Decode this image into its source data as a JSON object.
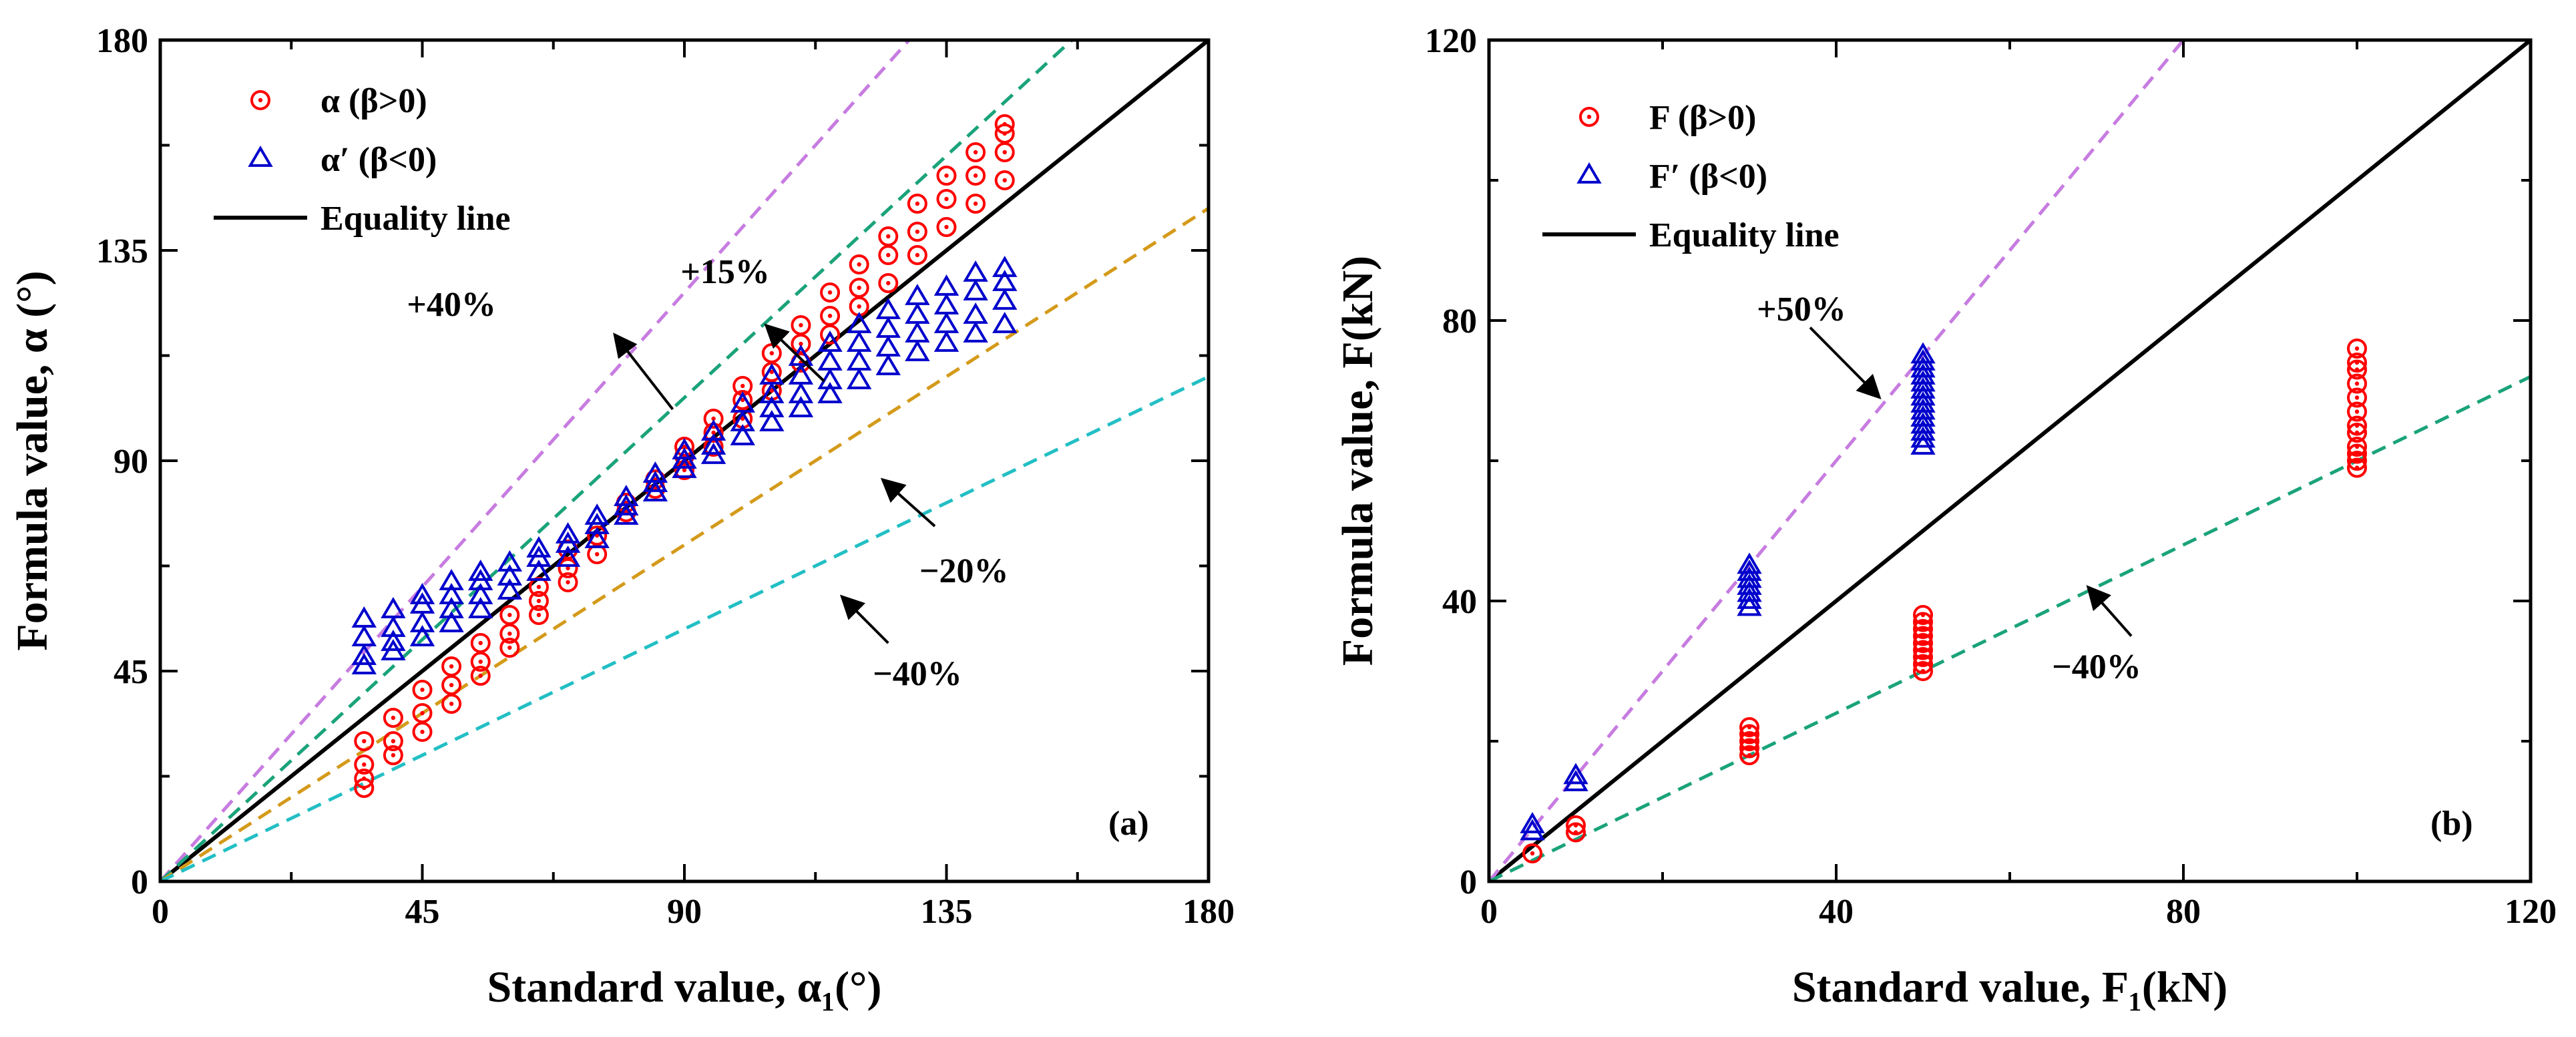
{
  "chart_data": [
    {
      "type": "scatter",
      "panel_label": "(a)",
      "xlabel": "Standard value, α₁(°)",
      "ylabel": "Formula value, α (°)",
      "xlim": [
        0,
        180
      ],
      "ylim": [
        0,
        180
      ],
      "xticks": [
        0,
        45,
        90,
        135,
        180
      ],
      "yticks": [
        0,
        45,
        90,
        135,
        180
      ],
      "legend_position": "top-left",
      "legend": [
        "α  (β>0)",
        "α′ (β<0)",
        "Equality line"
      ],
      "reference_lines": [
        {
          "slope": 1.0,
          "style": "solid",
          "color": "#000000",
          "label": "Equality line"
        },
        {
          "slope": 1.4,
          "style": "dashed",
          "color": "#c77ce0",
          "label": "+40%"
        },
        {
          "slope": 1.15,
          "style": "dashed",
          "color": "#1aa37a",
          "label": "+15%"
        },
        {
          "slope": 0.8,
          "style": "dashed",
          "color": "#d49a1a",
          "label": "−20%"
        },
        {
          "slope": 0.6,
          "style": "dashed",
          "color": "#22bfc4",
          "label": "−40%"
        }
      ],
      "annotations": [
        {
          "text": "+40%",
          "text_at": [
            50,
            121
          ],
          "arrow_from": [
            88,
            101
          ],
          "arrow_to": [
            78,
            117
          ]
        },
        {
          "text": "+15%",
          "text_at": [
            97,
            128
          ],
          "arrow_from": [
            114,
            107
          ],
          "arrow_to": [
            104,
            119
          ]
        },
        {
          "text": "−20%",
          "text_at": [
            138,
            64
          ],
          "arrow_from": [
            133,
            76
          ],
          "arrow_to": [
            124,
            86
          ]
        },
        {
          "text": "−40%",
          "text_at": [
            130,
            42
          ],
          "arrow_from": [
            125,
            51
          ],
          "arrow_to": [
            117,
            61
          ]
        }
      ],
      "series": [
        {
          "name": "α  (β>0)",
          "marker": "circle-dot",
          "color": "#ff0000",
          "points": [
            [
              35,
              20
            ],
            [
              35,
              22
            ],
            [
              35,
              25
            ],
            [
              35,
              30
            ],
            [
              40,
              27
            ],
            [
              40,
              30
            ],
            [
              40,
              35
            ],
            [
              45,
              32
            ],
            [
              45,
              36
            ],
            [
              45,
              41
            ],
            [
              50,
              38
            ],
            [
              50,
              42
            ],
            [
              50,
              46
            ],
            [
              55,
              44
            ],
            [
              55,
              47
            ],
            [
              55,
              51
            ],
            [
              60,
              50
            ],
            [
              60,
              53
            ],
            [
              60,
              57
            ],
            [
              65,
              57
            ],
            [
              65,
              60
            ],
            [
              65,
              63
            ],
            [
              70,
              64
            ],
            [
              70,
              67
            ],
            [
              70,
              71
            ],
            [
              75,
              70
            ],
            [
              75,
              74
            ],
            [
              80,
              79
            ],
            [
              80,
              81
            ],
            [
              85,
              84
            ],
            [
              85,
              86
            ],
            [
              90,
              88
            ],
            [
              90,
              91
            ],
            [
              90,
              93
            ],
            [
              95,
              93
            ],
            [
              95,
              96
            ],
            [
              95,
              99
            ],
            [
              100,
              99
            ],
            [
              100,
              103
            ],
            [
              100,
              106
            ],
            [
              105,
              105
            ],
            [
              105,
              109
            ],
            [
              105,
              113
            ],
            [
              110,
              111
            ],
            [
              110,
              115
            ],
            [
              110,
              119
            ],
            [
              115,
              117
            ],
            [
              115,
              121
            ],
            [
              115,
              126
            ],
            [
              120,
              123
            ],
            [
              120,
              127
            ],
            [
              120,
              132
            ],
            [
              125,
              128
            ],
            [
              125,
              134
            ],
            [
              125,
              138
            ],
            [
              130,
              134
            ],
            [
              130,
              139
            ],
            [
              130,
              145
            ],
            [
              135,
              140
            ],
            [
              135,
              146
            ],
            [
              135,
              151
            ],
            [
              140,
              145
            ],
            [
              140,
              151
            ],
            [
              140,
              156
            ],
            [
              145,
              150
            ],
            [
              145,
              156
            ],
            [
              145,
              160
            ],
            [
              145,
              162
            ]
          ]
        },
        {
          "name": "α′ (β<0)",
          "marker": "triangle",
          "color": "#0000cc",
          "points": [
            [
              35,
              46
            ],
            [
              35,
              48
            ],
            [
              35,
              52
            ],
            [
              35,
              56
            ],
            [
              40,
              49
            ],
            [
              40,
              51
            ],
            [
              40,
              54
            ],
            [
              40,
              58
            ],
            [
              45,
              52
            ],
            [
              45,
              55
            ],
            [
              45,
              59
            ],
            [
              45,
              61
            ],
            [
              50,
              55
            ],
            [
              50,
              58
            ],
            [
              50,
              61
            ],
            [
              50,
              64
            ],
            [
              55,
              58
            ],
            [
              55,
              61
            ],
            [
              55,
              64
            ],
            [
              55,
              66
            ],
            [
              60,
              62
            ],
            [
              60,
              65
            ],
            [
              60,
              68
            ],
            [
              65,
              66
            ],
            [
              65,
              69
            ],
            [
              65,
              71
            ],
            [
              70,
              69
            ],
            [
              70,
              72
            ],
            [
              70,
              74
            ],
            [
              75,
              73
            ],
            [
              75,
              76
            ],
            [
              75,
              78
            ],
            [
              80,
              78
            ],
            [
              80,
              80
            ],
            [
              80,
              82
            ],
            [
              85,
              83
            ],
            [
              85,
              85
            ],
            [
              85,
              87
            ],
            [
              90,
              88
            ],
            [
              90,
              90
            ],
            [
              90,
              92
            ],
            [
              95,
              91
            ],
            [
              95,
              93
            ],
            [
              95,
              96
            ],
            [
              100,
              95
            ],
            [
              100,
              98
            ],
            [
              100,
              102
            ],
            [
              105,
              98
            ],
            [
              105,
              101
            ],
            [
              105,
              104
            ],
            [
              105,
              108
            ],
            [
              110,
              101
            ],
            [
              110,
              104
            ],
            [
              110,
              108
            ],
            [
              110,
              112
            ],
            [
              115,
              104
            ],
            [
              115,
              107
            ],
            [
              115,
              111
            ],
            [
              115,
              115
            ],
            [
              120,
              107
            ],
            [
              120,
              111
            ],
            [
              120,
              115
            ],
            [
              120,
              119
            ],
            [
              125,
              110
            ],
            [
              125,
              114
            ],
            [
              125,
              118
            ],
            [
              125,
              122
            ],
            [
              130,
              113
            ],
            [
              130,
              117
            ],
            [
              130,
              121
            ],
            [
              130,
              125
            ],
            [
              135,
              115
            ],
            [
              135,
              119
            ],
            [
              135,
              123
            ],
            [
              135,
              127
            ],
            [
              140,
              117
            ],
            [
              140,
              121
            ],
            [
              140,
              126
            ],
            [
              140,
              130
            ],
            [
              145,
              119
            ],
            [
              145,
              124
            ],
            [
              145,
              128
            ],
            [
              145,
              131
            ]
          ]
        }
      ]
    },
    {
      "type": "scatter",
      "panel_label": "(b)",
      "xlabel": "Standard value, F₁(kN)",
      "ylabel": "Formula value, F(kN)",
      "xlim": [
        0,
        120
      ],
      "ylim": [
        0,
        120
      ],
      "xticks": [
        0,
        40,
        80,
        120
      ],
      "yticks": [
        0,
        40,
        80,
        120
      ],
      "legend_position": "top-left",
      "legend": [
        "F  (β>0)",
        "F′ (β<0)",
        "Equality line"
      ],
      "reference_lines": [
        {
          "slope": 1.0,
          "style": "solid",
          "color": "#000000",
          "label": "Equality line"
        },
        {
          "slope": 1.5,
          "style": "dashed",
          "color": "#c77ce0",
          "label": "+50%"
        },
        {
          "slope": 0.6,
          "style": "dashed",
          "color": "#1aa37a",
          "label": "−40%"
        }
      ],
      "annotations": [
        {
          "text": "+50%",
          "text_at": [
            36,
            80
          ],
          "arrow_from": [
            37,
            79
          ],
          "arrow_to": [
            45,
            69
          ]
        },
        {
          "text": "−40%",
          "text_at": [
            70,
            29
          ],
          "arrow_from": [
            74,
            35
          ],
          "arrow_to": [
            69,
            42
          ]
        }
      ],
      "series": [
        {
          "name": "F  (β>0)",
          "marker": "circle-dot",
          "color": "#ff0000",
          "points": [
            [
              5,
              4
            ],
            [
              10,
              7
            ],
            [
              10,
              8
            ],
            [
              30,
              18
            ],
            [
              30,
              19
            ],
            [
              30,
              20
            ],
            [
              30,
              21
            ],
            [
              30,
              22
            ],
            [
              50,
              30
            ],
            [
              50,
              31
            ],
            [
              50,
              32
            ],
            [
              50,
              33
            ],
            [
              50,
              34
            ],
            [
              50,
              35
            ],
            [
              50,
              36
            ],
            [
              50,
              37
            ],
            [
              50,
              38
            ],
            [
              100,
              59
            ],
            [
              100,
              60
            ],
            [
              100,
              61
            ],
            [
              100,
              62
            ],
            [
              100,
              64
            ],
            [
              100,
              65
            ],
            [
              100,
              67
            ],
            [
              100,
              69
            ],
            [
              100,
              71
            ],
            [
              100,
              73
            ],
            [
              100,
              74
            ],
            [
              100,
              76
            ]
          ]
        },
        {
          "name": "F′ (β<0)",
          "marker": "triangle",
          "color": "#0000cc",
          "points": [
            [
              5,
              7
            ],
            [
              5,
              8
            ],
            [
              10,
              14
            ],
            [
              10,
              15
            ],
            [
              30,
              39
            ],
            [
              30,
              40
            ],
            [
              30,
              41
            ],
            [
              30,
              42
            ],
            [
              30,
              43
            ],
            [
              30,
              44
            ],
            [
              30,
              45
            ],
            [
              50,
              62
            ],
            [
              50,
              63
            ],
            [
              50,
              64
            ],
            [
              50,
              65
            ],
            [
              50,
              66
            ],
            [
              50,
              67
            ],
            [
              50,
              68
            ],
            [
              50,
              69
            ],
            [
              50,
              70
            ],
            [
              50,
              71
            ],
            [
              50,
              72
            ],
            [
              50,
              73
            ],
            [
              50,
              74
            ],
            [
              50,
              75
            ]
          ]
        }
      ]
    }
  ]
}
